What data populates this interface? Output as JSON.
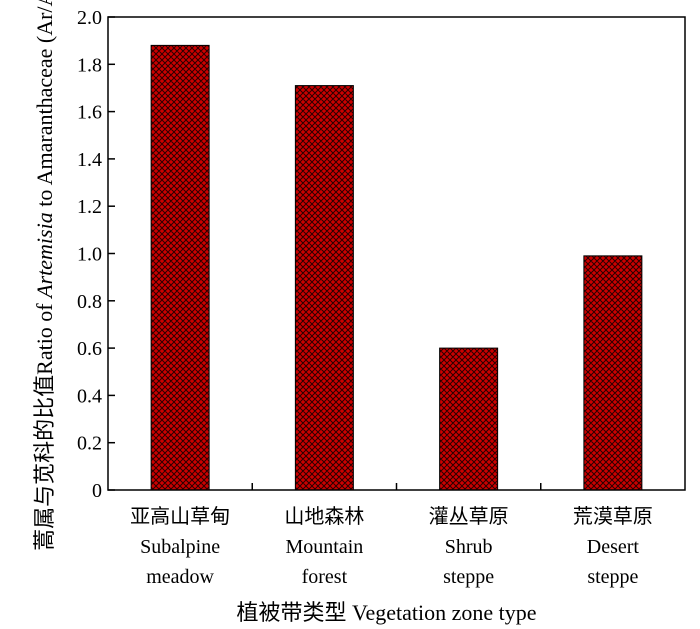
{
  "chart_data": {
    "type": "bar",
    "title": "",
    "xlabel": "植被带类型 Vegetation zone type",
    "ylabel_cn": "蒿属与苋科的比值",
    "ylabel_en_prefix": "Ratio of ",
    "ylabel_en_italic": "Artemisia",
    "ylabel_en_suffix": " to Amaranthaceae (Ar/Am)",
    "ylim": [
      0,
      2.0
    ],
    "yticks": [
      "0",
      "0.2",
      "0.4",
      "0.6",
      "0.8",
      "1.0",
      "1.2",
      "1.4",
      "1.6",
      "1.8",
      "2.0"
    ],
    "categories": [
      {
        "cn": "亚高山草甸",
        "en1": "Subalpine",
        "en2": "meadow"
      },
      {
        "cn": "山地森林",
        "en1": "Mountain",
        "en2": "forest"
      },
      {
        "cn": "灌丛草原",
        "en1": "Shrub",
        "en2": "steppe"
      },
      {
        "cn": "荒漠草原",
        "en1": "Desert",
        "en2": "steppe"
      }
    ],
    "values": [
      1.88,
      1.71,
      0.6,
      0.99
    ],
    "bar_color": "#cc0000",
    "hatch_color": "#2a0000",
    "grid": false,
    "legend": "none"
  }
}
